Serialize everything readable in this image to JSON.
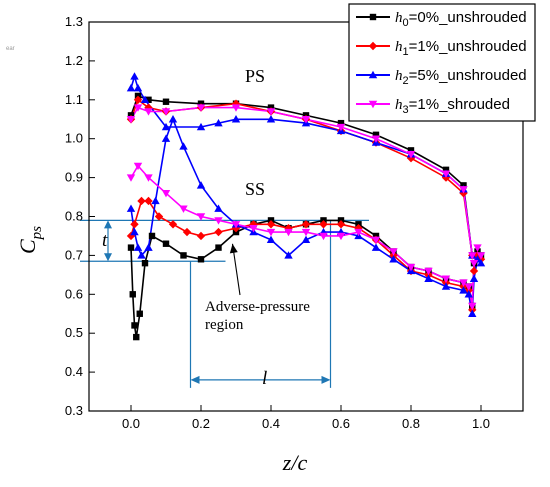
{
  "chart_data": {
    "type": "line",
    "xlabel": "z/c",
    "ylabel": {
      "main": "C",
      "sub": "ps"
    },
    "xlim": [
      -0.12,
      1.12
    ],
    "ylim": [
      0.3,
      1.3
    ],
    "xticks": [
      "0.0",
      "0.2",
      "0.4",
      "0.6",
      "0.8",
      "1.0"
    ],
    "xtick_values": [
      0.0,
      0.2,
      0.4,
      0.6,
      0.8,
      1.0
    ],
    "yticks": [
      "0.3",
      "0.4",
      "0.5",
      "0.6",
      "0.7",
      "0.8",
      "0.9",
      "1.0",
      "1.1",
      "1.2",
      "1.3"
    ],
    "ytick_values": [
      0.3,
      0.4,
      0.5,
      0.6,
      0.7,
      0.8,
      0.9,
      1.0,
      1.1,
      1.2,
      1.3
    ],
    "legend_position": "top-right",
    "series": [
      {
        "name": {
          "sym": "h",
          "sub": "0",
          "rest": "=0%_unshrouded"
        },
        "color": "#000000",
        "marker": "square",
        "ps": [
          [
            0.0,
            1.06
          ],
          [
            0.02,
            1.11
          ],
          [
            0.05,
            1.1
          ],
          [
            0.1,
            1.095
          ],
          [
            0.2,
            1.09
          ],
          [
            0.3,
            1.09
          ],
          [
            0.4,
            1.08
          ],
          [
            0.5,
            1.06
          ],
          [
            0.6,
            1.04
          ],
          [
            0.7,
            1.01
          ],
          [
            0.8,
            0.97
          ],
          [
            0.9,
            0.92
          ],
          [
            0.95,
            0.88
          ],
          [
            0.975,
            0.7
          ]
        ],
        "ss": [
          [
            0.0,
            0.72
          ],
          [
            0.005,
            0.6
          ],
          [
            0.01,
            0.52
          ],
          [
            0.015,
            0.49
          ],
          [
            0.025,
            0.55
          ],
          [
            0.04,
            0.68
          ],
          [
            0.06,
            0.75
          ],
          [
            0.1,
            0.73
          ],
          [
            0.15,
            0.7
          ],
          [
            0.2,
            0.69
          ],
          [
            0.25,
            0.72
          ],
          [
            0.3,
            0.76
          ],
          [
            0.35,
            0.78
          ],
          [
            0.4,
            0.79
          ],
          [
            0.45,
            0.77
          ],
          [
            0.5,
            0.78
          ],
          [
            0.55,
            0.79
          ],
          [
            0.6,
            0.79
          ],
          [
            0.65,
            0.78
          ],
          [
            0.7,
            0.75
          ],
          [
            0.75,
            0.71
          ],
          [
            0.8,
            0.67
          ],
          [
            0.85,
            0.66
          ],
          [
            0.9,
            0.64
          ],
          [
            0.95,
            0.63
          ],
          [
            0.965,
            0.62
          ],
          [
            0.975,
            0.57
          ],
          [
            0.98,
            0.68
          ],
          [
            0.99,
            0.71
          ],
          [
            1.0,
            0.7
          ]
        ]
      },
      {
        "name": {
          "sym": "h",
          "sub": "1",
          "rest": "=1%_unshrouded"
        },
        "color": "#ff0000",
        "marker": "diamond",
        "ps": [
          [
            0.0,
            1.05
          ],
          [
            0.02,
            1.1
          ],
          [
            0.05,
            1.08
          ],
          [
            0.1,
            1.07
          ],
          [
            0.2,
            1.08
          ],
          [
            0.3,
            1.09
          ],
          [
            0.4,
            1.07
          ],
          [
            0.5,
            1.05
          ],
          [
            0.6,
            1.02
          ],
          [
            0.7,
            0.99
          ],
          [
            0.8,
            0.95
          ],
          [
            0.9,
            0.9
          ],
          [
            0.95,
            0.86
          ],
          [
            0.975,
            0.7
          ]
        ],
        "ss": [
          [
            0.0,
            0.75
          ],
          [
            0.01,
            0.78
          ],
          [
            0.03,
            0.84
          ],
          [
            0.05,
            0.84
          ],
          [
            0.08,
            0.8
          ],
          [
            0.12,
            0.78
          ],
          [
            0.16,
            0.76
          ],
          [
            0.2,
            0.75
          ],
          [
            0.25,
            0.76
          ],
          [
            0.3,
            0.77
          ],
          [
            0.35,
            0.78
          ],
          [
            0.4,
            0.78
          ],
          [
            0.45,
            0.77
          ],
          [
            0.5,
            0.78
          ],
          [
            0.55,
            0.78
          ],
          [
            0.6,
            0.78
          ],
          [
            0.65,
            0.77
          ],
          [
            0.7,
            0.74
          ],
          [
            0.75,
            0.7
          ],
          [
            0.8,
            0.66
          ],
          [
            0.85,
            0.65
          ],
          [
            0.9,
            0.63
          ],
          [
            0.95,
            0.62
          ],
          [
            0.965,
            0.61
          ],
          [
            0.975,
            0.56
          ],
          [
            0.98,
            0.66
          ],
          [
            0.99,
            0.7
          ],
          [
            1.0,
            0.69
          ]
        ]
      },
      {
        "name": {
          "sym": "h",
          "sub": "2",
          "rest": "=5%_unshrouded"
        },
        "color": "#0000ff",
        "marker": "triangle",
        "ps": [
          [
            0.0,
            1.13
          ],
          [
            0.01,
            1.16
          ],
          [
            0.02,
            1.13
          ],
          [
            0.04,
            1.1
          ],
          [
            0.1,
            1.03
          ],
          [
            0.2,
            1.03
          ],
          [
            0.25,
            1.04
          ],
          [
            0.3,
            1.05
          ],
          [
            0.4,
            1.05
          ],
          [
            0.5,
            1.04
          ],
          [
            0.6,
            1.02
          ],
          [
            0.7,
            0.99
          ],
          [
            0.8,
            0.96
          ],
          [
            0.9,
            0.91
          ],
          [
            0.95,
            0.87
          ],
          [
            0.975,
            0.7
          ]
        ],
        "ss": [
          [
            0.0,
            0.82
          ],
          [
            0.01,
            0.76
          ],
          [
            0.02,
            0.72
          ],
          [
            0.03,
            0.7
          ],
          [
            0.05,
            0.72
          ],
          [
            0.07,
            0.84
          ],
          [
            0.1,
            1.0
          ],
          [
            0.12,
            1.05
          ],
          [
            0.15,
            0.98
          ],
          [
            0.2,
            0.88
          ],
          [
            0.25,
            0.82
          ],
          [
            0.3,
            0.78
          ],
          [
            0.35,
            0.76
          ],
          [
            0.4,
            0.74
          ],
          [
            0.45,
            0.7
          ],
          [
            0.5,
            0.74
          ],
          [
            0.55,
            0.76
          ],
          [
            0.6,
            0.76
          ],
          [
            0.65,
            0.75
          ],
          [
            0.7,
            0.72
          ],
          [
            0.75,
            0.69
          ],
          [
            0.8,
            0.66
          ],
          [
            0.85,
            0.64
          ],
          [
            0.9,
            0.62
          ],
          [
            0.95,
            0.61
          ],
          [
            0.965,
            0.6
          ],
          [
            0.975,
            0.55
          ],
          [
            0.98,
            0.64
          ],
          [
            0.99,
            0.69
          ],
          [
            1.0,
            0.68
          ]
        ]
      },
      {
        "name": {
          "sym": "h",
          "sub": "3",
          "rest": "=1%_shrouded"
        },
        "color": "#ff00ff",
        "marker": "triangle-down",
        "ps": [
          [
            0.0,
            1.05
          ],
          [
            0.02,
            1.08
          ],
          [
            0.05,
            1.07
          ],
          [
            0.1,
            1.07
          ],
          [
            0.2,
            1.08
          ],
          [
            0.3,
            1.08
          ],
          [
            0.4,
            1.07
          ],
          [
            0.5,
            1.05
          ],
          [
            0.6,
            1.03
          ],
          [
            0.7,
            1.0
          ],
          [
            0.8,
            0.96
          ],
          [
            0.9,
            0.91
          ],
          [
            0.95,
            0.87
          ],
          [
            0.975,
            0.7
          ]
        ],
        "ss": [
          [
            0.0,
            0.9
          ],
          [
            0.02,
            0.93
          ],
          [
            0.05,
            0.9
          ],
          [
            0.1,
            0.86
          ],
          [
            0.15,
            0.82
          ],
          [
            0.2,
            0.8
          ],
          [
            0.25,
            0.79
          ],
          [
            0.3,
            0.78
          ],
          [
            0.35,
            0.77
          ],
          [
            0.4,
            0.76
          ],
          [
            0.45,
            0.76
          ],
          [
            0.5,
            0.76
          ],
          [
            0.55,
            0.75
          ],
          [
            0.6,
            0.75
          ],
          [
            0.65,
            0.76
          ],
          [
            0.7,
            0.74
          ],
          [
            0.75,
            0.71
          ],
          [
            0.8,
            0.67
          ],
          [
            0.85,
            0.66
          ],
          [
            0.9,
            0.64
          ],
          [
            0.95,
            0.63
          ],
          [
            0.965,
            0.62
          ],
          [
            0.975,
            0.57
          ],
          [
            0.98,
            0.68
          ],
          [
            0.99,
            0.72
          ],
          [
            1.0,
            0.7
          ]
        ]
      }
    ],
    "annotations": {
      "ps_label": "PS",
      "ss_label": "SS",
      "adverse_line1": "Adverse-pressure",
      "adverse_line2": "region",
      "t_label": "t",
      "l_label": "l",
      "stray_text": "ear",
      "anno_color": "#1f77b4",
      "upper_level": 0.79,
      "lower_level": 0.685,
      "l_start": 0.17,
      "l_end": 0.57,
      "l_arrow_y": 0.38,
      "adverse_target": [
        0.29,
        0.74
      ]
    }
  }
}
